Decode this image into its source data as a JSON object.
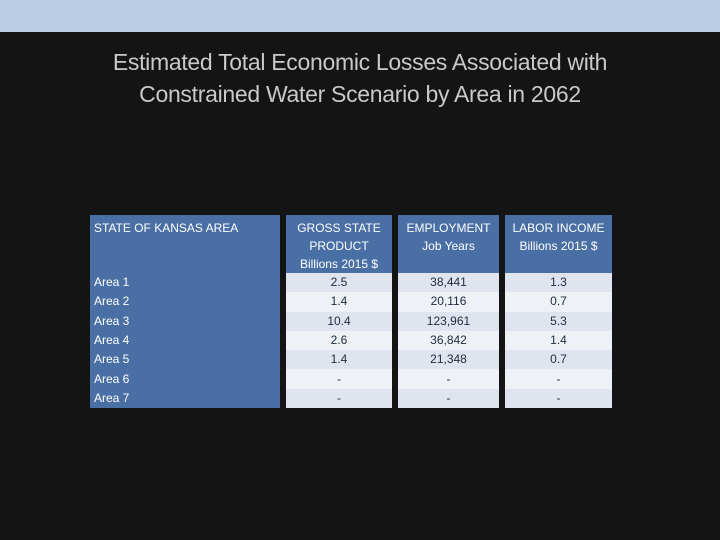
{
  "slide": {
    "title_line1": "Estimated Total Economic Losses Associated with",
    "title_line2": "Constrained Water Scenario by Area in 2062"
  },
  "table": {
    "headers": {
      "area": "STATE OF KANSAS AREA",
      "gsp": [
        "GROSS STATE",
        "PRODUCT",
        "Billions 2015 $"
      ],
      "employment": [
        "EMPLOYMENT",
        "Job Years"
      ],
      "labor_income": [
        "LABOR INCOME",
        "Billions 2015 $"
      ]
    },
    "rows": [
      {
        "area": "Area 1",
        "gsp": "2.5",
        "employment": "38,441",
        "labor_income": "1.3"
      },
      {
        "area": "Area 2",
        "gsp": "1.4",
        "employment": "20,116",
        "labor_income": "0.7"
      },
      {
        "area": "Area 3",
        "gsp": "10.4",
        "employment": "123,961",
        "labor_income": "5.3"
      },
      {
        "area": "Area 4",
        "gsp": "2.6",
        "employment": "36,842",
        "labor_income": "1.4"
      },
      {
        "area": "Area 5",
        "gsp": "1.4",
        "employment": "21,348",
        "labor_income": "0.7"
      },
      {
        "area": "Area 6",
        "gsp": "-",
        "employment": "-",
        "labor_income": "-"
      },
      {
        "area": "Area 7",
        "gsp": "-",
        "employment": "-",
        "labor_income": "-"
      }
    ]
  }
}
